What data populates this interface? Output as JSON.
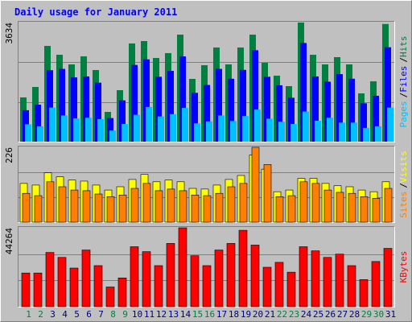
{
  "chart_data": [
    {
      "type": "bar",
      "title": "Daily usage for January 2011",
      "ylim": [
        0,
        3634
      ],
      "yticks": [
        3634
      ],
      "legend_separator": "/",
      "series": [
        {
          "name": "Hits",
          "color": "#008040",
          "values": [
            1350,
            1669,
            2921,
            2651,
            2357,
            2602,
            2185,
            908,
            1571,
            2995,
            3069,
            2553,
            2700,
            3265,
            1915,
            2332,
            2872,
            2357,
            2872,
            3265,
            2406,
            2013,
            1694,
            3634,
            2651,
            2357,
            2578,
            2357,
            1473,
            1841,
            3590
          ]
        },
        {
          "name": "Files",
          "color": "#0000ff",
          "values": [
            960,
            1130,
            2180,
            2220,
            1960,
            1990,
            1800,
            720,
            1260,
            2340,
            2510,
            1980,
            2160,
            2600,
            1490,
            1730,
            2220,
            1920,
            2190,
            2790,
            1980,
            1720,
            1340,
            3010,
            1990,
            1830,
            2060,
            1920,
            1170,
            1400,
            2880
          ]
        },
        {
          "name": "Pages",
          "color": "#00c0ff",
          "values": [
            530,
            470,
            1040,
            800,
            710,
            730,
            690,
            340,
            540,
            820,
            1060,
            770,
            840,
            1030,
            560,
            620,
            800,
            630,
            780,
            980,
            700,
            610,
            540,
            920,
            640,
            730,
            580,
            580,
            420,
            470,
            1040
          ]
        }
      ]
    },
    {
      "type": "bar",
      "ylim": [
        0,
        226
      ],
      "yticks": [
        226
      ],
      "legend_separator": "/",
      "series": [
        {
          "name": "Visits",
          "color": "#ffff00",
          "values": [
            117,
            112,
            149,
            137,
            127,
            124,
            112,
            97,
            107,
            129,
            144,
            122,
            127,
            122,
            102,
            100,
            112,
            129,
            141,
            203,
            160,
            92,
            97,
            132,
            132,
            117,
            110,
            107,
            97,
            92,
            122
          ]
        },
        {
          "name": "Sites",
          "color": "#ff8000",
          "values": [
            87,
            80,
            122,
            107,
            97,
            95,
            85,
            77,
            82,
            102,
            117,
            95,
            100,
            95,
            82,
            80,
            87,
            107,
            117,
            226,
            174,
            77,
            80,
            122,
            117,
            97,
            90,
            87,
            77,
            72,
            102
          ]
        }
      ]
    },
    {
      "type": "bar",
      "ylim": [
        0,
        44264
      ],
      "yticks": [
        44264
      ],
      "categories": [
        "1",
        "2",
        "3",
        "4",
        "5",
        "6",
        "7",
        "8",
        "9",
        "10",
        "11",
        "12",
        "13",
        "14",
        "15",
        "16",
        "17",
        "18",
        "19",
        "20",
        "21",
        "22",
        "23",
        "24",
        "25",
        "26",
        "27",
        "28",
        "29",
        "30",
        "31"
      ],
      "category_colors": [
        "#008040",
        "#008040",
        "#000080",
        "#000080",
        "#000080",
        "#000080",
        "#000080",
        "#008040",
        "#008040",
        "#000080",
        "#000080",
        "#000080",
        "#000080",
        "#000080",
        "#008040",
        "#008040",
        "#000080",
        "#000080",
        "#000080",
        "#000080",
        "#000080",
        "#008040",
        "#008040",
        "#000080",
        "#000080",
        "#000080",
        "#000080",
        "#000080",
        "#008040",
        "#008040",
        "#000080"
      ],
      "series": [
        {
          "name": "KBytes",
          "color": "#ff0000",
          "values": [
            18900,
            18900,
            30430,
            27660,
            21670,
            31810,
            23050,
            11060,
            16140,
            33650,
            30890,
            23050,
            35500,
            44264,
            28580,
            23050,
            31810,
            35500,
            42870,
            34580,
            22130,
            24890,
            19360,
            33650,
            31350,
            27660,
            29500,
            23050,
            15210,
            25360,
            32730
          ]
        }
      ]
    }
  ]
}
